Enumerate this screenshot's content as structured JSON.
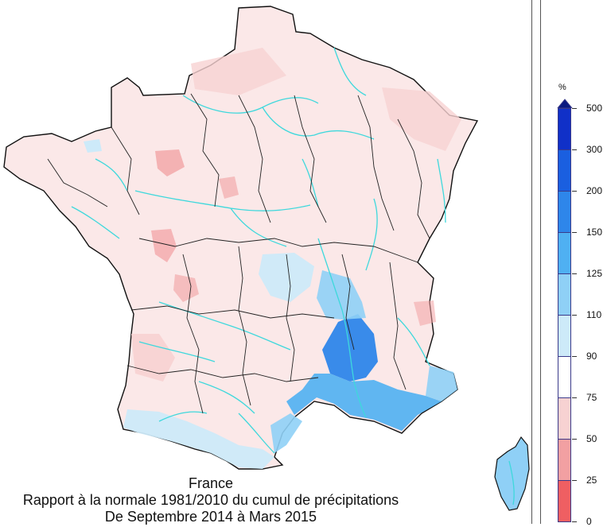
{
  "caption": {
    "line1": "France",
    "line2": "Rapport à la normale 1981/2010 du cumul de précipitations",
    "line3": "De Septembre 2014 à Mars 2015"
  },
  "legend": {
    "unit": "%",
    "classes": [
      {
        "label": "500",
        "color": "#1030c8"
      },
      {
        "label": "300",
        "color": "#1a5fe0"
      },
      {
        "label": "200",
        "color": "#2e86ea"
      },
      {
        "label": "150",
        "color": "#4fb0f2"
      },
      {
        "label": "125",
        "color": "#8fd0f6"
      },
      {
        "label": "110",
        "color": "#cdeaf9"
      },
      {
        "label": "90",
        "color": "#ffffff"
      },
      {
        "label": "75",
        "color": "#f7d2d2"
      },
      {
        "label": "50",
        "color": "#f2a0a2"
      },
      {
        "label": "25",
        "color": "#ef5f62"
      },
      {
        "label": "0",
        "color": "#f03030"
      }
    ],
    "top_arrow_color": "#0a1a80"
  },
  "map": {
    "country": "France",
    "border_color": "#111111",
    "river_color": "#3ed8dc"
  }
}
